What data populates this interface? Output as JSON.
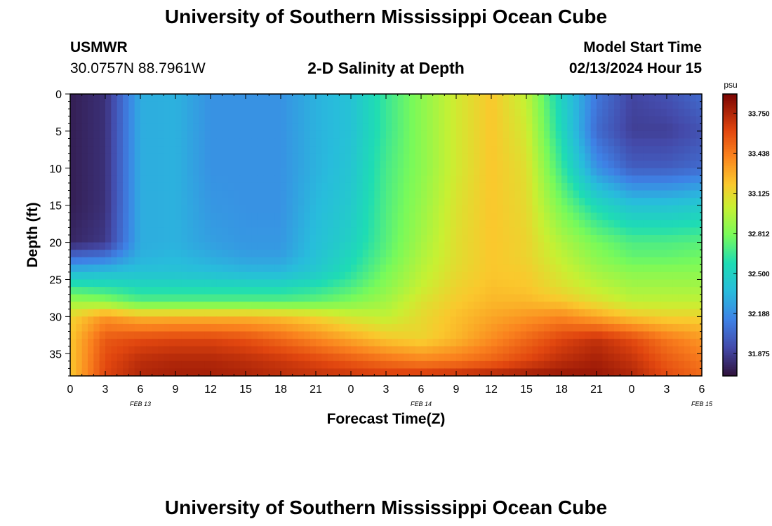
{
  "header": {
    "title": "University of Southern Mississippi Ocean Cube",
    "station_id": "USMWR",
    "station_coords": "30.0757N  88.7961W",
    "plot_title": "2-D Salinity at Depth",
    "model_start_label": "Model Start Time",
    "model_start_value": "02/13/2024 Hour 15"
  },
  "footer": {
    "title": "University of Southern Mississippi Ocean Cube"
  },
  "chart_data": {
    "type": "heatmap",
    "xlabel": "Forecast Time(Z)",
    "ylabel": "Depth (ft)",
    "colorbar_label": "psu",
    "colorbar_ticks": [
      "33.750",
      "33.438",
      "33.125",
      "32.812",
      "32.500",
      "32.188",
      "31.875"
    ],
    "colorbar_range": [
      31.7,
      33.9
    ],
    "x_tick_labels": [
      "0",
      "3",
      "6",
      "9",
      "12",
      "15",
      "18",
      "21",
      "0",
      "3",
      "6",
      "9",
      "12",
      "15",
      "18",
      "21",
      "0",
      "3",
      "6"
    ],
    "x_day_labels": [
      {
        "label": "FEB 13",
        "hours": 6
      },
      {
        "label": "FEB 14",
        "hours": 30
      },
      {
        "label": "FEB 15",
        "hours": 54
      }
    ],
    "xlim_hours": [
      0,
      54
    ],
    "y_ticks": [
      0,
      5,
      10,
      15,
      20,
      25,
      30,
      35
    ],
    "ylim": [
      38,
      0
    ],
    "grid": false,
    "salinity_field": {
      "depths_ft": [
        0,
        5,
        10,
        15,
        20,
        22,
        24,
        26,
        28,
        30,
        33,
        36,
        38
      ],
      "times_h": [
        0,
        3,
        6,
        9,
        12,
        15,
        18,
        21,
        24,
        27,
        30,
        33,
        36,
        39,
        42,
        45,
        48,
        51,
        54
      ],
      "values_psu": [
        [
          31.75,
          31.82,
          32.3,
          32.32,
          32.2,
          32.2,
          32.2,
          32.32,
          32.4,
          32.65,
          32.85,
          33.05,
          33.2,
          33.0,
          32.5,
          32.1,
          31.9,
          31.95,
          32.05
        ],
        [
          31.75,
          31.82,
          32.3,
          32.32,
          32.2,
          32.2,
          32.2,
          32.32,
          32.4,
          32.65,
          32.85,
          33.05,
          33.2,
          33.05,
          32.55,
          32.05,
          31.88,
          31.88,
          31.95
        ],
        [
          31.75,
          31.82,
          32.3,
          32.32,
          32.2,
          32.2,
          32.2,
          32.32,
          32.42,
          32.68,
          32.85,
          33.05,
          33.2,
          33.1,
          32.65,
          32.2,
          32.0,
          32.0,
          32.05
        ],
        [
          31.75,
          31.82,
          32.3,
          32.32,
          32.22,
          32.2,
          32.2,
          32.35,
          32.45,
          32.7,
          32.88,
          33.08,
          33.2,
          33.12,
          32.8,
          32.55,
          32.4,
          32.4,
          32.45
        ],
        [
          31.78,
          31.85,
          32.3,
          32.32,
          32.25,
          32.22,
          32.22,
          32.38,
          32.5,
          32.72,
          32.92,
          33.1,
          33.2,
          33.15,
          32.95,
          32.8,
          32.7,
          32.7,
          32.72
        ],
        [
          32.05,
          32.1,
          32.32,
          32.35,
          32.3,
          32.25,
          32.25,
          32.4,
          32.55,
          32.75,
          32.95,
          33.1,
          33.2,
          33.15,
          33.0,
          32.85,
          32.75,
          32.75,
          32.78
        ],
        [
          32.35,
          32.38,
          32.4,
          32.4,
          32.38,
          32.35,
          32.35,
          32.45,
          32.6,
          32.8,
          32.98,
          33.12,
          33.2,
          33.18,
          33.05,
          32.92,
          32.85,
          32.85,
          32.85
        ],
        [
          32.65,
          32.6,
          32.55,
          32.55,
          32.55,
          32.55,
          32.55,
          32.6,
          32.7,
          32.85,
          33.02,
          33.15,
          33.22,
          33.2,
          33.1,
          33.0,
          32.92,
          32.92,
          32.92
        ],
        [
          32.9,
          32.85,
          32.72,
          32.72,
          32.72,
          32.72,
          32.72,
          32.75,
          32.82,
          32.92,
          33.08,
          33.18,
          33.25,
          33.25,
          33.2,
          33.1,
          33.0,
          33.0,
          33.0
        ],
        [
          33.15,
          33.35,
          33.25,
          33.25,
          33.25,
          33.25,
          33.22,
          33.15,
          33.05,
          33.0,
          33.12,
          33.22,
          33.3,
          33.35,
          33.4,
          33.3,
          33.2,
          33.15,
          33.15
        ],
        [
          33.2,
          33.55,
          33.6,
          33.62,
          33.62,
          33.58,
          33.5,
          33.4,
          33.3,
          33.2,
          33.15,
          33.25,
          33.38,
          33.5,
          33.62,
          33.7,
          33.6,
          33.45,
          33.35
        ],
        [
          33.2,
          33.6,
          33.72,
          33.75,
          33.75,
          33.72,
          33.68,
          33.62,
          33.55,
          33.48,
          33.42,
          33.45,
          33.52,
          33.62,
          33.72,
          33.78,
          33.7,
          33.55,
          33.45
        ],
        [
          33.2,
          33.62,
          33.75,
          33.78,
          33.78,
          33.76,
          33.72,
          33.7,
          33.68,
          33.66,
          33.68,
          33.72,
          33.76,
          33.8,
          33.82,
          33.82,
          33.75,
          33.6,
          33.5
        ]
      ]
    }
  }
}
